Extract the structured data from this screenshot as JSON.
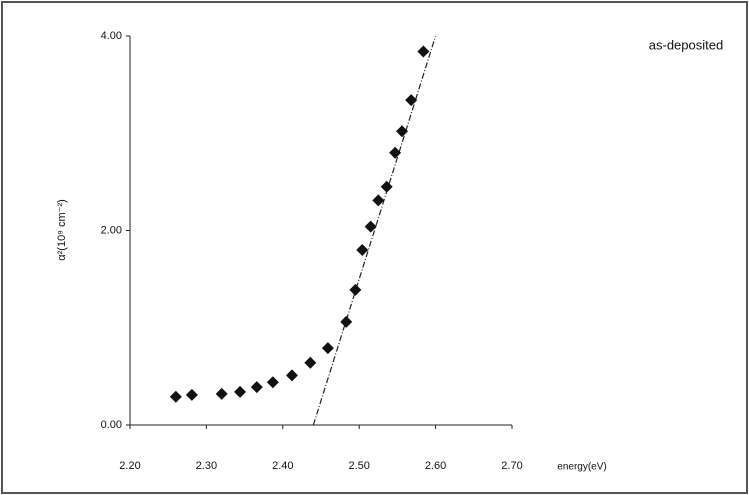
{
  "chart_data": {
    "type": "scatter",
    "y_label": "α²(10⁹ cm⁻²)",
    "x_label": "energy(eV)",
    "annotation": "as-deposited",
    "series": [
      {
        "color": "#111111",
        "x": [
          2.26,
          2.281,
          2.32,
          2.344,
          2.366,
          2.387,
          2.412,
          2.436,
          2.459,
          2.483,
          2.495,
          2.504,
          2.515,
          2.525,
          2.536,
          2.547,
          2.556,
          2.568,
          2.584
        ],
        "values": [
          0.29,
          0.31,
          0.32,
          0.34,
          0.39,
          0.44,
          0.51,
          0.64,
          0.79,
          1.06,
          1.39,
          1.8,
          2.04,
          2.31,
          2.45,
          2.8,
          3.02,
          3.34,
          3.84
        ]
      }
    ],
    "fit_line": {
      "x": [
        2.44,
        2.6
      ],
      "values": [
        0,
        4.0
      ],
      "color": "#222222"
    },
    "xlim": [
      2.2,
      2.7
    ],
    "ylim": [
      0,
      4.0
    ],
    "xticks": [
      {
        "value": 2.2,
        "label": "2.20"
      },
      {
        "value": 2.3,
        "label": "2.30"
      },
      {
        "value": 2.4,
        "label": "2.40"
      },
      {
        "value": 2.5,
        "label": "2.50"
      },
      {
        "value": 2.6,
        "label": "2.60"
      },
      {
        "value": 2.7,
        "label": "2.70"
      }
    ],
    "yticks": [
      {
        "value": 0,
        "label": "0.00"
      },
      {
        "value": 2.0,
        "label": "2.00"
      },
      {
        "value": 4.0,
        "label": "4.00"
      }
    ]
  }
}
